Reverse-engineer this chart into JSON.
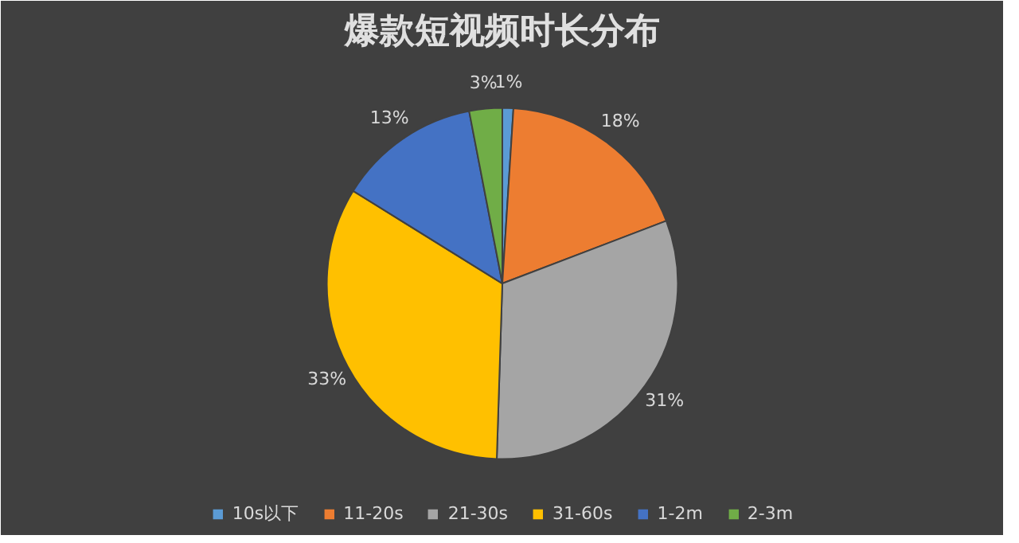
{
  "chart_data": {
    "type": "pie",
    "title": "爆款短视频时长分布",
    "categories": [
      "10s以下",
      "11-20s",
      "21-30s",
      "31-60s",
      "1-2m",
      "2-3m"
    ],
    "values": [
      1,
      18,
      31,
      33,
      13,
      3
    ],
    "value_labels": [
      "1%",
      "18%",
      "31%",
      "33%",
      "13%",
      "3%"
    ],
    "colors": [
      "#5b9bd5",
      "#ed7d31",
      "#a5a5a5",
      "#ffc000",
      "#4472c4",
      "#70ad47"
    ],
    "legend": "bottom"
  }
}
